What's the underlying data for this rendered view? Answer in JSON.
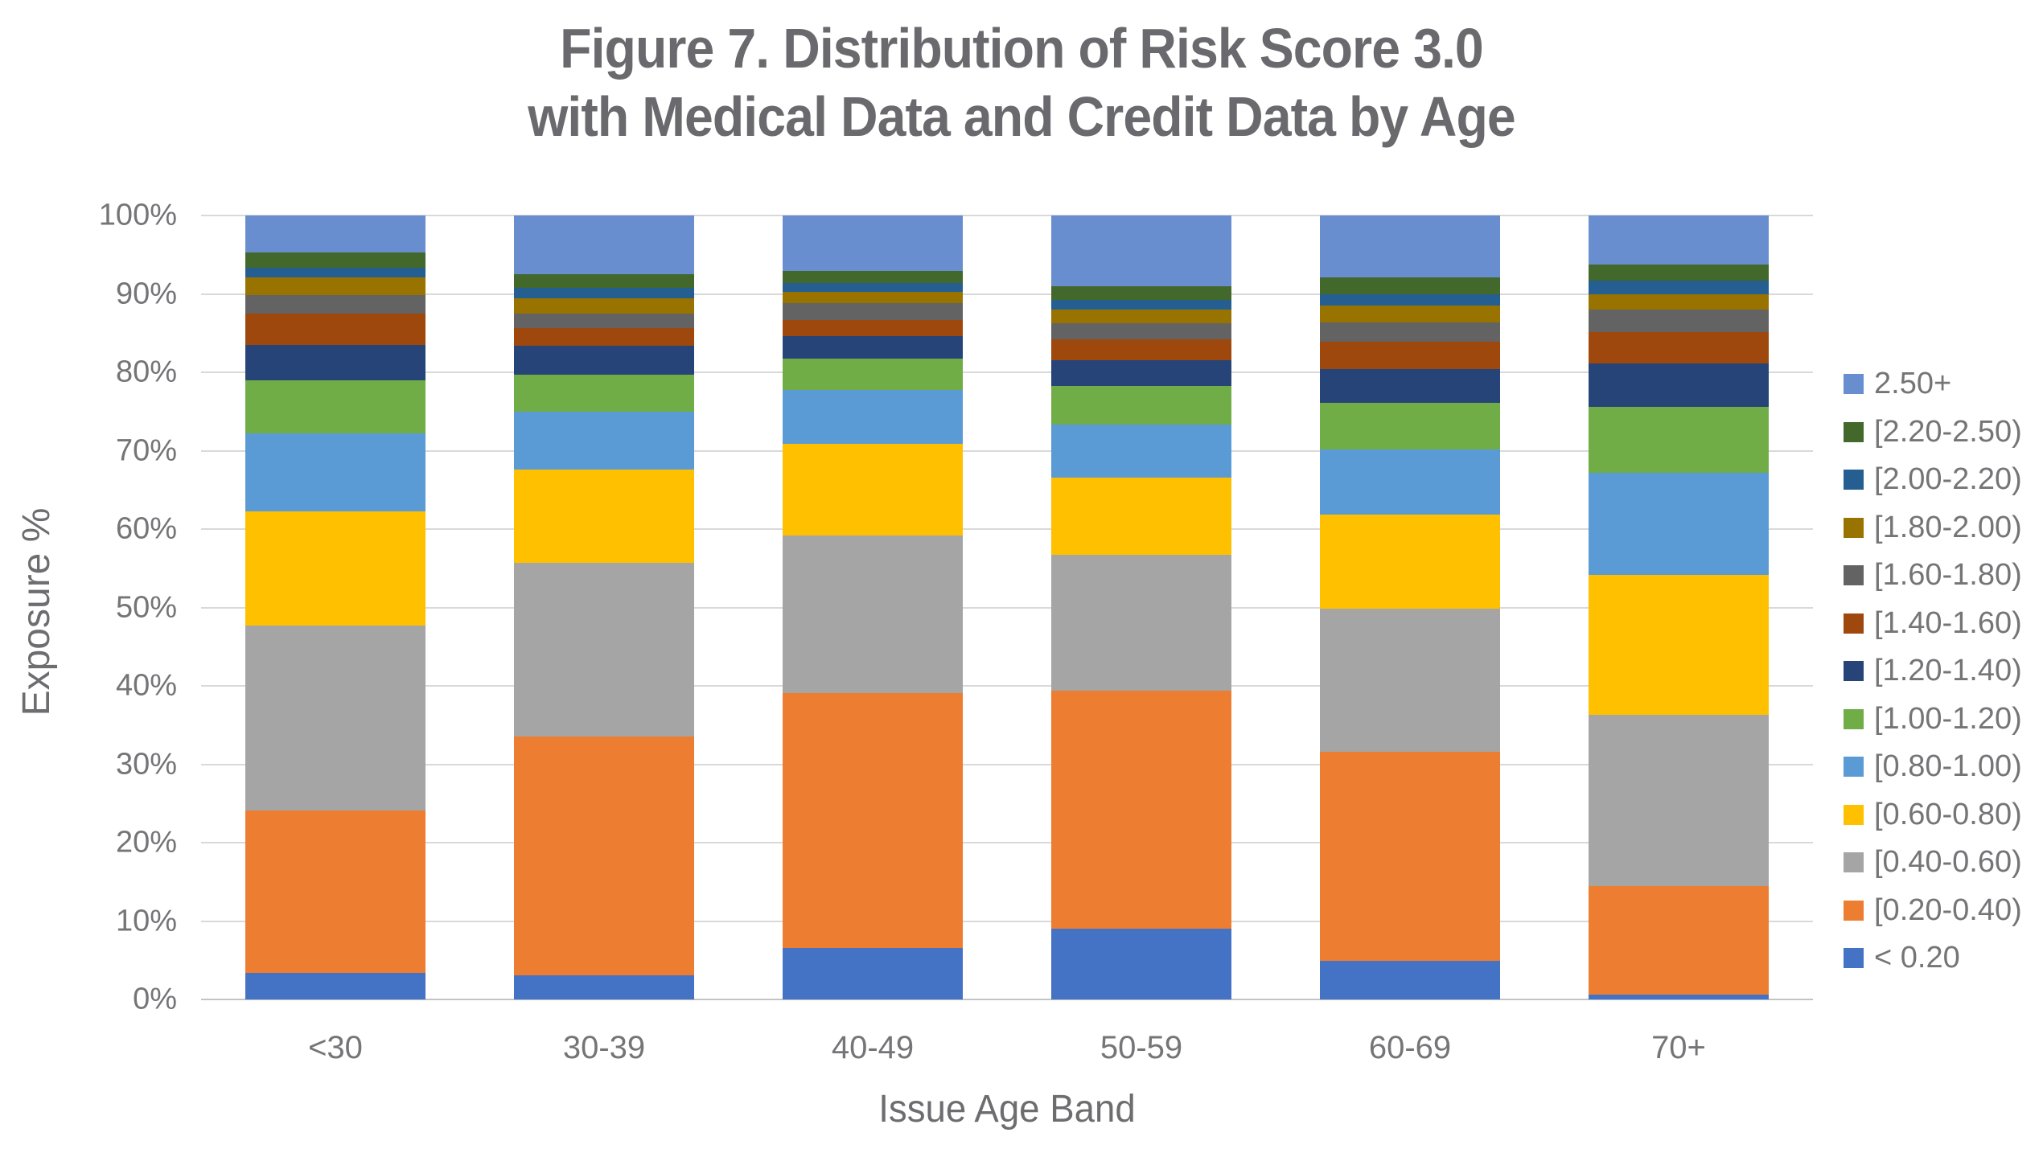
{
  "figure": {
    "title_line1": "Figure 7. Distribution of Risk Score 3.0",
    "title_line2": "with Medical Data and Credit Data by Age"
  },
  "colors": {
    "background": "#ffffff",
    "title_text": "#6a6a6e",
    "axis_text": "#757578",
    "gridline": "#d9d9d9",
    "axis_line": "#c3c3c3"
  },
  "chart_data": {
    "type": "bar",
    "stacked": true,
    "title": "Figure 7. Distribution of Risk Score 3.0 with Medical Data and Credit Data by Age",
    "xlabel": "Issue Age Band",
    "ylabel": "Exposure %",
    "ylim": [
      0,
      100
    ],
    "grid": true,
    "legend_position": "right",
    "yticks": [
      0,
      10,
      20,
      30,
      40,
      50,
      60,
      70,
      80,
      90,
      100
    ],
    "ytick_labels": [
      "0%",
      "10%",
      "20%",
      "30%",
      "40%",
      "50%",
      "60%",
      "70%",
      "80%",
      "90%",
      "100%"
    ],
    "categories": [
      "<30",
      "30-39",
      "40-49",
      "50-59",
      "60-69",
      "70+"
    ],
    "series_note": "series listed bottom-to-top in stacking order; values are Exposure % per Issue Age Band",
    "series": [
      {
        "name": "< 0.20",
        "color": "#4472c4",
        "values": [
          3.4,
          3.1,
          6.6,
          9.0,
          4.9,
          0.6
        ]
      },
      {
        "name": "[0.20-0.40)",
        "color": "#ed7d31",
        "values": [
          20.7,
          30.4,
          32.5,
          30.4,
          26.7,
          13.9
        ]
      },
      {
        "name": "[0.40-0.60)",
        "color": "#a5a5a5",
        "values": [
          23.6,
          22.2,
          20.1,
          17.3,
          18.2,
          21.8
        ]
      },
      {
        "name": "[0.60-0.80)",
        "color": "#ffc000",
        "values": [
          14.6,
          11.9,
          11.7,
          9.9,
          12.1,
          17.9
        ]
      },
      {
        "name": "[0.80-1.00)",
        "color": "#5b9bd5",
        "values": [
          9.9,
          7.4,
          6.8,
          6.7,
          8.3,
          13.0
        ]
      },
      {
        "name": "[1.00-1.20)",
        "color": "#70ad47",
        "values": [
          6.8,
          4.7,
          4.0,
          5.0,
          5.9,
          8.4
        ]
      },
      {
        "name": "[1.20-1.40)",
        "color": "#264478",
        "values": [
          4.5,
          3.7,
          2.9,
          3.2,
          4.3,
          5.5
        ]
      },
      {
        "name": "[1.40-1.60)",
        "color": "#9e480e",
        "values": [
          4.0,
          2.2,
          2.1,
          2.7,
          3.5,
          4.0
        ]
      },
      {
        "name": "[1.60-1.80)",
        "color": "#636363",
        "values": [
          2.4,
          1.9,
          2.1,
          2.1,
          2.5,
          2.9
        ]
      },
      {
        "name": "[1.80-2.00)",
        "color": "#997300",
        "values": [
          2.2,
          1.9,
          1.5,
          1.7,
          2.1,
          2.0
        ]
      },
      {
        "name": "[2.00-2.20)",
        "color": "#255e91",
        "values": [
          1.2,
          1.4,
          1.1,
          1.2,
          1.5,
          1.7
        ]
      },
      {
        "name": "[2.20-2.50)",
        "color": "#43682b",
        "values": [
          2.0,
          1.7,
          1.5,
          1.8,
          2.1,
          2.0
        ]
      },
      {
        "name": "2.50+",
        "color": "#698ed0",
        "values": [
          4.7,
          7.5,
          7.1,
          9.0,
          7.9,
          6.3
        ]
      }
    ],
    "legend_entries_top_to_bottom": [
      "2.50+",
      "[2.20-2.50)",
      "[2.00-2.20)",
      "[1.80-2.00)",
      "[1.60-1.80)",
      "[1.40-1.60)",
      "[1.20-1.40)",
      "[1.00-1.20)",
      "[0.80-1.00)",
      "[0.60-0.80)",
      "[0.40-0.60)",
      "[0.20-0.40)",
      "< 0.20"
    ]
  }
}
